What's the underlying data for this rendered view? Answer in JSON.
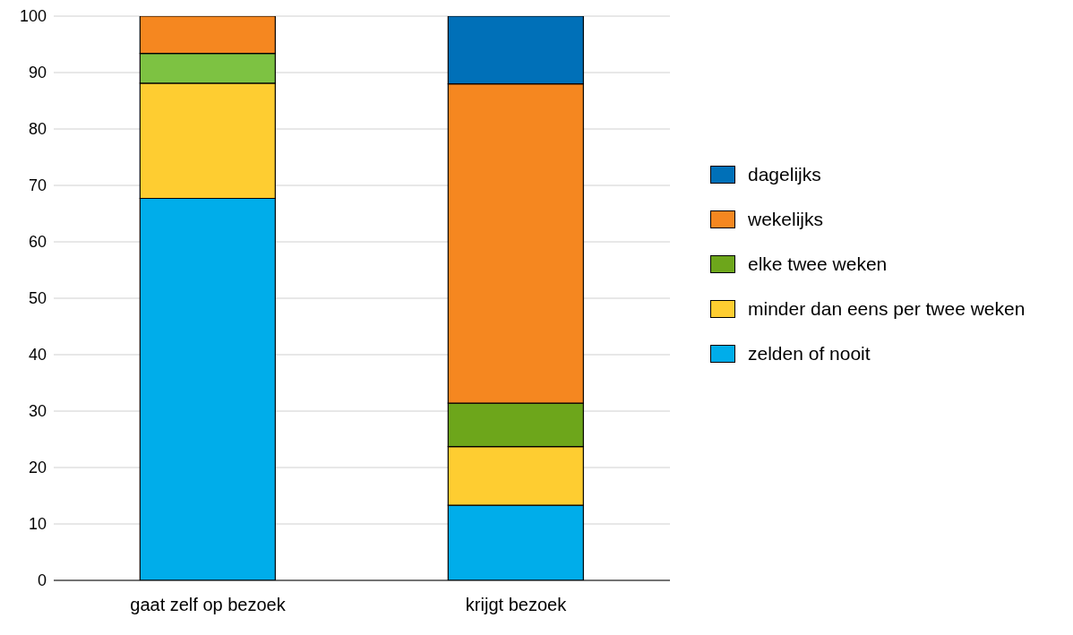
{
  "chart_data": {
    "type": "bar",
    "stacked": true,
    "categories": [
      "gaat zelf op bezoek",
      "krijgt bezoek"
    ],
    "series": [
      {
        "name": "zelden of nooit",
        "color": "#00adea",
        "values": [
          67.7,
          13.3
        ]
      },
      {
        "name": "minder dan eens per twee weken",
        "color": "#fecd31",
        "values": [
          20.4,
          10.4
        ]
      },
      {
        "name": "elke twee weken",
        "color": "#6da61b",
        "colors": [
          "#7dc242",
          "#6da61b"
        ],
        "values": [
          5.3,
          7.7
        ]
      },
      {
        "name": "wekelijks",
        "color": "#f58720",
        "values": [
          6.6,
          56.6
        ]
      },
      {
        "name": "dagelijks",
        "color": "#0070b8",
        "values": [
          0,
          12.0
        ]
      }
    ],
    "ylim": [
      0,
      100
    ],
    "yticks": [
      0,
      10,
      20,
      30,
      40,
      50,
      60,
      70,
      80,
      90,
      100
    ],
    "grid": "y",
    "legend": "right"
  }
}
